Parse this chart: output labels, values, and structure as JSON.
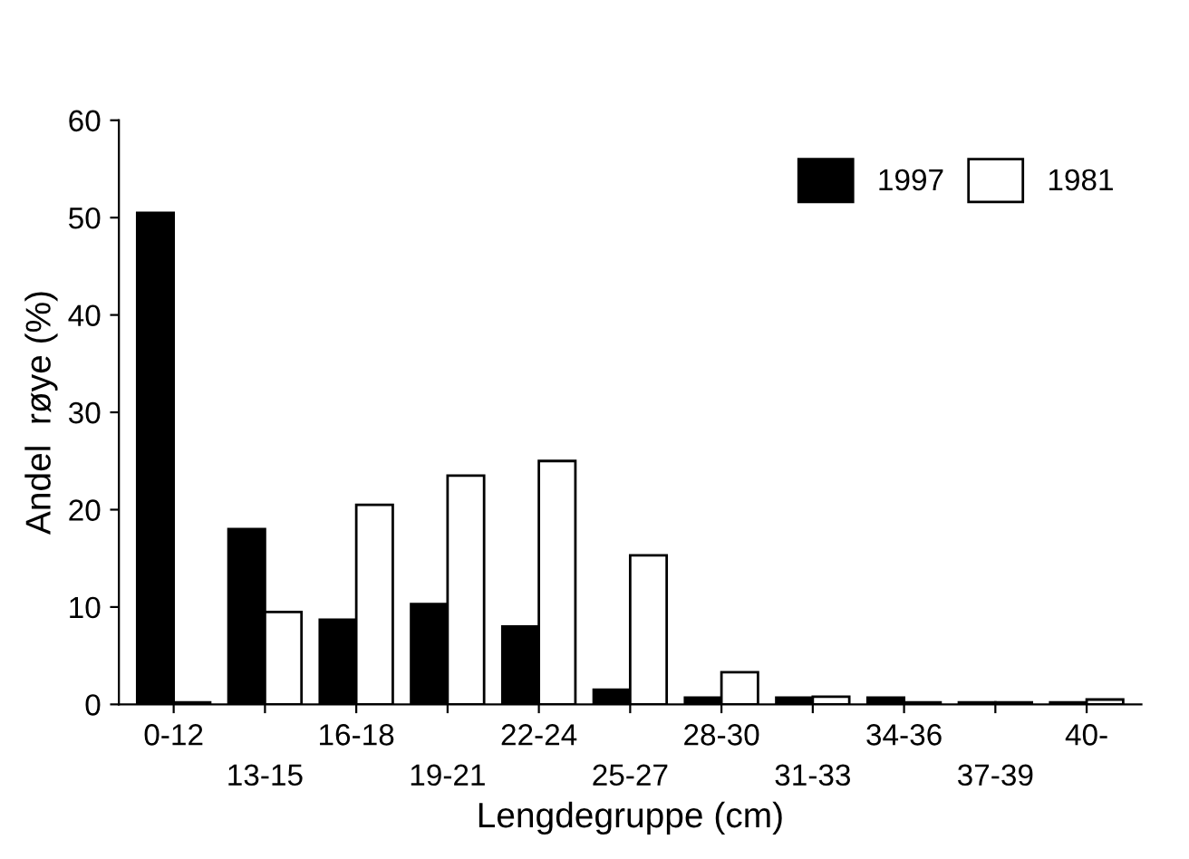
{
  "chart_data": {
    "type": "bar",
    "xlabel": "Lengdegruppe (cm)",
    "ylabel": "Andel  røye (%)",
    "categories": [
      "0-12",
      "13-15",
      "16-18",
      "19-21",
      "22-24",
      "25-27",
      "28-30",
      "31-33",
      "34-36",
      "37-39",
      "40-"
    ],
    "series": [
      {
        "name": "1997",
        "color": "#000000",
        "values": [
          50.5,
          18,
          8.7,
          10.3,
          8,
          1.5,
          0.7,
          0.7,
          0.7,
          0.2,
          0.2
        ]
      },
      {
        "name": "1981",
        "color": "#ffffff",
        "values": [
          0.2,
          9.5,
          20.5,
          23.5,
          25,
          15.3,
          3.3,
          0.8,
          0.2,
          0.2,
          0.5
        ]
      }
    ],
    "ylim": [
      0,
      60
    ],
    "yticks": [
      0,
      10,
      20,
      30,
      40,
      50,
      60
    ],
    "grid": false,
    "legend": "top right"
  }
}
